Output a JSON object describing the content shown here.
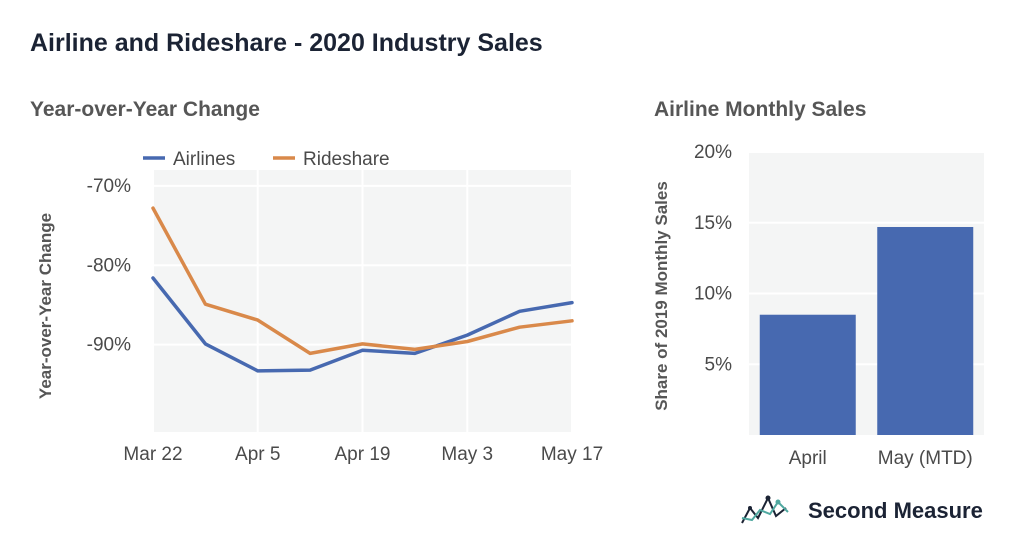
{
  "title": "Airline and Rideshare - 2020 Industry Sales",
  "brand": {
    "name": "Second Measure"
  },
  "colors": {
    "airlines": "#4769b0",
    "rideshare": "#d9894a",
    "bar": "#4769b0",
    "panel": "#f4f5f5",
    "grid": "#ffffff",
    "tick_text": "#4a4a4a"
  },
  "chart_data": [
    {
      "type": "line",
      "title": "Year-over-Year Change",
      "xlabel": "",
      "ylabel": "Year-over-Year Change",
      "x_ticks": [
        "Mar 22",
        "Apr 5",
        "Apr 19",
        "May 3",
        "May 17"
      ],
      "x": [
        "Mar 22",
        "Mar 29",
        "Apr 5",
        "Apr 12",
        "Apr 19",
        "Apr 26",
        "May 3",
        "May 10",
        "May 17"
      ],
      "y_ticks": [
        "-70%",
        "-80%",
        "-90%"
      ],
      "ylim": [
        -101,
        -68
      ],
      "grid": true,
      "legend": "top",
      "series": [
        {
          "name": "Airlines",
          "values": [
            -81.6,
            -89.9,
            -93.3,
            -93.2,
            -90.7,
            -91.1,
            -88.8,
            -85.8,
            -84.7
          ]
        },
        {
          "name": "Rideshare",
          "values": [
            -72.8,
            -84.9,
            -86.9,
            -91.1,
            -89.9,
            -90.6,
            -89.6,
            -87.8,
            -87.0
          ]
        }
      ]
    },
    {
      "type": "bar",
      "title": "Airline Monthly Sales",
      "xlabel": "",
      "ylabel": "Share of 2019 Monthly Sales",
      "categories": [
        "April",
        "May (MTD)"
      ],
      "values": [
        8.5,
        14.7
      ],
      "y_ticks": [
        "20%",
        "15%",
        "10%",
        "5%"
      ],
      "ylim": [
        0,
        20
      ],
      "grid": true
    }
  ]
}
